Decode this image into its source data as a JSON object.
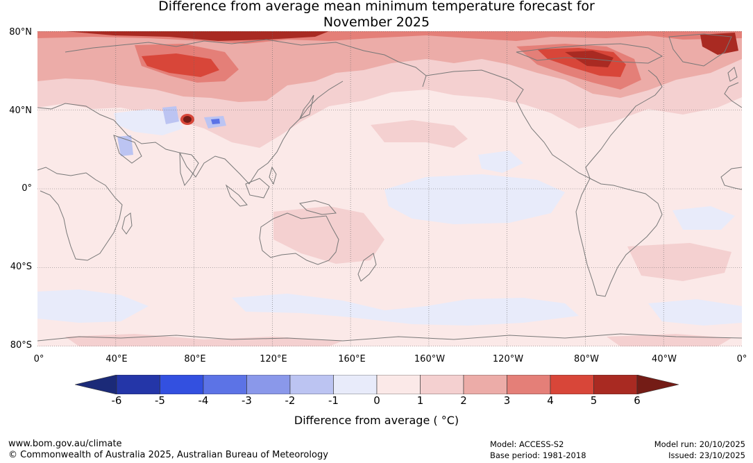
{
  "title": {
    "line1": "Difference from average mean minimum temperature forecast for",
    "line2": "November 2025"
  },
  "map": {
    "lat_labels": [
      "80°N",
      "40°N",
      "0°",
      "40°S",
      "80°S"
    ],
    "lon_labels": [
      "0°",
      "40°E",
      "80°E",
      "120°E",
      "160°E",
      "160°W",
      "120°W",
      "80°W",
      "40°W",
      "0°"
    ],
    "background_color": "#fbe9e8",
    "coastline_color": "#777777",
    "grid_color": "#666666"
  },
  "colorbar": {
    "title": "Difference from average ( °C)",
    "tick_labels": [
      "-6",
      "-5",
      "-4",
      "-3",
      "-2",
      "-1",
      "0",
      "1",
      "2",
      "3",
      "4",
      "5",
      "6"
    ],
    "below_color": "#1b2a78",
    "above_color": "#741c16",
    "bins": [
      {
        "from": -6,
        "to": -5,
        "color": "#2436a8"
      },
      {
        "from": -5,
        "to": -4,
        "color": "#3350e0"
      },
      {
        "from": -4,
        "to": -3,
        "color": "#5c73e6"
      },
      {
        "from": -3,
        "to": -2,
        "color": "#8a98ea"
      },
      {
        "from": -2,
        "to": -1,
        "color": "#bcc4f2"
      },
      {
        "from": -1,
        "to": 0,
        "color": "#e8ebfa"
      },
      {
        "from": 0,
        "to": 1,
        "color": "#fbe9e8"
      },
      {
        "from": 1,
        "to": 2,
        "color": "#f4d0d0"
      },
      {
        "from": 2,
        "to": 3,
        "color": "#ecaca8"
      },
      {
        "from": 3,
        "to": 4,
        "color": "#e47f78"
      },
      {
        "from": 4,
        "to": 5,
        "color": "#d84639"
      },
      {
        "from": 5,
        "to": 6,
        "color": "#a92a22"
      }
    ]
  },
  "footer": {
    "website": "www.bom.gov.au/climate",
    "copyright": "© Commonwealth of Australia 2025, Australian Bureau of Meteorology",
    "model": "Model: ACCESS-S2",
    "base_period": "Base period: 1981-2018",
    "model_run": "Model run: 20/10/2025",
    "issued": "Issued: 23/10/2025"
  }
}
